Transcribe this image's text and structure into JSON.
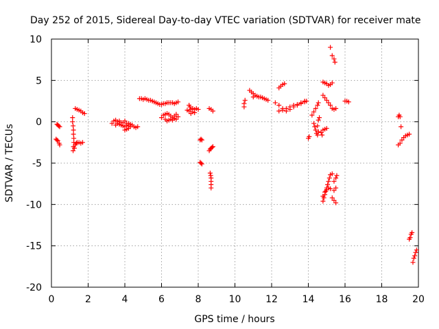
{
  "chart_data": {
    "type": "scatter",
    "title": "Day 252 of 2015, Sidereal Day-to-day VTEC variation (SDTVAR) for receiver mate",
    "xlabel": "GPS time / hours",
    "ylabel": "SDTVAR / TECUs",
    "xlim": [
      0,
      20
    ],
    "ylim": [
      -20,
      10
    ],
    "xticks": [
      "0",
      "2",
      "4",
      "6",
      "8",
      "10",
      "12",
      "14",
      "16",
      "18",
      "20"
    ],
    "yticks": [
      "10",
      "5",
      "0",
      "-5",
      "-10",
      "-15",
      "-20"
    ],
    "grid": true,
    "marker": "+",
    "color": "#ff0000",
    "series": [
      {
        "name": "SDTVAR",
        "points": [
          [
            0.3,
            -0.3
          ],
          [
            0.35,
            -0.4
          ],
          [
            0.4,
            -0.5
          ],
          [
            0.45,
            -0.6
          ],
          [
            0.25,
            -2.1
          ],
          [
            0.3,
            -2.2
          ],
          [
            0.35,
            -2.3
          ],
          [
            0.42,
            -2.6
          ],
          [
            0.45,
            -2.8
          ],
          [
            1.15,
            0.5
          ],
          [
            1.15,
            0.0
          ],
          [
            1.18,
            -0.5
          ],
          [
            1.2,
            -1.0
          ],
          [
            1.2,
            -1.5
          ],
          [
            1.22,
            -2.0
          ],
          [
            1.22,
            -2.5
          ],
          [
            1.2,
            -3.0
          ],
          [
            1.18,
            -3.5
          ],
          [
            1.25,
            -3.2
          ],
          [
            1.3,
            -2.8
          ],
          [
            1.35,
            -2.6
          ],
          [
            1.4,
            -2.5
          ],
          [
            1.5,
            -2.5
          ],
          [
            1.6,
            -2.6
          ],
          [
            1.7,
            -2.5
          ],
          [
            1.3,
            1.6
          ],
          [
            1.4,
            1.5
          ],
          [
            1.5,
            1.4
          ],
          [
            1.6,
            1.3
          ],
          [
            1.7,
            1.1
          ],
          [
            1.8,
            1.0
          ],
          [
            3.3,
            -0.2
          ],
          [
            3.4,
            0.1
          ],
          [
            3.5,
            0.2
          ],
          [
            3.6,
            0.0
          ],
          [
            3.7,
            -0.3
          ],
          [
            3.8,
            -0.4
          ],
          [
            3.9,
            -0.1
          ],
          [
            4.0,
            0.1
          ],
          [
            4.1,
            -0.2
          ],
          [
            4.2,
            -0.5
          ],
          [
            4.3,
            -0.6
          ],
          [
            4.4,
            -0.4
          ],
          [
            4.5,
            -0.6
          ],
          [
            4.6,
            -0.7
          ],
          [
            4.7,
            -0.6
          ],
          [
            3.5,
            -0.4
          ],
          [
            3.6,
            -0.2
          ],
          [
            3.7,
            0.1
          ],
          [
            3.8,
            -0.1
          ],
          [
            3.9,
            -0.5
          ],
          [
            4.0,
            -0.6
          ],
          [
            4.1,
            -0.4
          ],
          [
            4.2,
            -0.2
          ],
          [
            4.3,
            -0.3
          ],
          [
            4.0,
            -1.0
          ],
          [
            4.1,
            -0.9
          ],
          [
            4.2,
            -0.8
          ],
          [
            4.8,
            2.8
          ],
          [
            4.9,
            2.8
          ],
          [
            5.0,
            2.7
          ],
          [
            5.1,
            2.8
          ],
          [
            5.2,
            2.7
          ],
          [
            5.3,
            2.6
          ],
          [
            5.4,
            2.6
          ],
          [
            5.5,
            2.5
          ],
          [
            5.6,
            2.4
          ],
          [
            5.7,
            2.3
          ],
          [
            5.8,
            2.2
          ],
          [
            5.9,
            2.1
          ],
          [
            6.0,
            2.1
          ],
          [
            6.1,
            2.2
          ],
          [
            6.2,
            2.2
          ],
          [
            6.3,
            2.3
          ],
          [
            6.4,
            2.3
          ],
          [
            6.5,
            2.3
          ],
          [
            6.6,
            2.3
          ],
          [
            6.7,
            2.2
          ],
          [
            6.8,
            2.3
          ],
          [
            6.9,
            2.4
          ],
          [
            6.0,
            0.5
          ],
          [
            6.1,
            0.8
          ],
          [
            6.2,
            0.9
          ],
          [
            6.3,
            1.0
          ],
          [
            6.4,
            0.9
          ],
          [
            6.5,
            0.7
          ],
          [
            6.6,
            0.5
          ],
          [
            6.7,
            0.7
          ],
          [
            6.8,
            0.9
          ],
          [
            6.9,
            0.6
          ],
          [
            6.2,
            0.3
          ],
          [
            6.3,
            0.1
          ],
          [
            6.4,
            0.2
          ],
          [
            6.5,
            0.3
          ],
          [
            6.6,
            0.2
          ],
          [
            6.7,
            0.4
          ],
          [
            6.8,
            0.3
          ],
          [
            7.4,
            1.4
          ],
          [
            7.5,
            1.3
          ],
          [
            7.6,
            1.5
          ],
          [
            7.7,
            1.6
          ],
          [
            7.8,
            1.5
          ],
          [
            7.9,
            1.6
          ],
          [
            8.0,
            1.5
          ],
          [
            7.5,
            2.0
          ],
          [
            7.55,
            1.8
          ],
          [
            7.6,
            1.0
          ],
          [
            7.7,
            1.2
          ],
          [
            7.8,
            1.1
          ],
          [
            8.1,
            -2.2
          ],
          [
            8.15,
            -2.1
          ],
          [
            8.2,
            -2.2
          ],
          [
            8.1,
            -4.9
          ],
          [
            8.15,
            -5.0
          ],
          [
            8.2,
            -5.1
          ],
          [
            8.6,
            -3.5
          ],
          [
            8.65,
            -3.3
          ],
          [
            8.7,
            -3.2
          ],
          [
            8.75,
            -3.1
          ],
          [
            8.8,
            -3.0
          ],
          [
            8.65,
            -6.2
          ],
          [
            8.68,
            -6.5
          ],
          [
            8.7,
            -6.8
          ],
          [
            8.7,
            -7.2
          ],
          [
            8.7,
            -7.6
          ],
          [
            8.7,
            -8.0
          ],
          [
            8.6,
            1.6
          ],
          [
            8.7,
            1.5
          ],
          [
            8.8,
            1.3
          ],
          [
            10.5,
            1.8
          ],
          [
            10.5,
            2.2
          ],
          [
            10.55,
            2.6
          ],
          [
            10.8,
            3.8
          ],
          [
            10.9,
            3.6
          ],
          [
            11.0,
            3.4
          ],
          [
            11.0,
            3.0
          ],
          [
            11.1,
            3.2
          ],
          [
            11.2,
            3.1
          ],
          [
            11.3,
            3.0
          ],
          [
            11.4,
            3.0
          ],
          [
            11.5,
            2.9
          ],
          [
            11.6,
            2.8
          ],
          [
            11.7,
            2.7
          ],
          [
            11.8,
            2.6
          ],
          [
            12.4,
            4.1
          ],
          [
            12.5,
            4.3
          ],
          [
            12.6,
            4.5
          ],
          [
            12.7,
            4.6
          ],
          [
            12.2,
            2.3
          ],
          [
            12.4,
            2.0
          ],
          [
            12.6,
            1.6
          ],
          [
            12.8,
            1.3
          ],
          [
            13.0,
            1.5
          ],
          [
            13.2,
            1.8
          ],
          [
            13.4,
            2.0
          ],
          [
            13.6,
            2.2
          ],
          [
            13.8,
            2.4
          ],
          [
            13.9,
            2.5
          ],
          [
            12.4,
            1.3
          ],
          [
            12.6,
            1.4
          ],
          [
            12.8,
            1.6
          ],
          [
            13.0,
            1.8
          ],
          [
            13.2,
            2.0
          ],
          [
            13.4,
            2.1
          ],
          [
            13.6,
            2.3
          ],
          [
            13.8,
            2.5
          ],
          [
            14.0,
            -2.0
          ],
          [
            14.05,
            -1.8
          ],
          [
            14.2,
            0.8
          ],
          [
            14.3,
            1.2
          ],
          [
            14.4,
            1.6
          ],
          [
            14.5,
            2.0
          ],
          [
            14.55,
            2.3
          ],
          [
            14.3,
            -0.2
          ],
          [
            14.35,
            -0.6
          ],
          [
            14.4,
            -1.0
          ],
          [
            14.45,
            -1.4
          ],
          [
            14.5,
            -1.6
          ],
          [
            14.55,
            -1.2
          ],
          [
            14.5,
            -0.5
          ],
          [
            14.55,
            0.2
          ],
          [
            14.6,
            0.5
          ],
          [
            14.8,
            -1.0
          ],
          [
            14.9,
            -0.9
          ],
          [
            15.0,
            -0.8
          ],
          [
            14.7,
            -1.3
          ],
          [
            14.75,
            -1.6
          ],
          [
            14.8,
            4.8
          ],
          [
            14.9,
            4.7
          ],
          [
            15.0,
            4.6
          ],
          [
            15.1,
            4.4
          ],
          [
            15.2,
            4.5
          ],
          [
            15.3,
            4.7
          ],
          [
            14.8,
            3.2
          ],
          [
            14.9,
            2.9
          ],
          [
            15.0,
            2.6
          ],
          [
            15.1,
            2.3
          ],
          [
            15.2,
            2.0
          ],
          [
            15.3,
            1.6
          ],
          [
            15.4,
            1.5
          ],
          [
            15.5,
            1.6
          ],
          [
            15.2,
            9.0
          ],
          [
            15.3,
            8.0
          ],
          [
            15.4,
            7.6
          ],
          [
            15.45,
            7.2
          ],
          [
            14.8,
            -9.6
          ],
          [
            14.85,
            -9.2
          ],
          [
            14.9,
            -8.8
          ],
          [
            14.95,
            -8.4
          ],
          [
            15.0,
            -8.0
          ],
          [
            15.05,
            -7.6
          ],
          [
            15.1,
            -7.2
          ],
          [
            15.15,
            -6.8
          ],
          [
            15.2,
            -6.4
          ],
          [
            15.3,
            -6.3
          ],
          [
            14.8,
            -9.0
          ],
          [
            14.9,
            -8.5
          ],
          [
            15.0,
            -8.2
          ],
          [
            15.1,
            -8.0
          ],
          [
            15.2,
            -8.1
          ],
          [
            15.3,
            -9.2
          ],
          [
            15.4,
            -9.5
          ],
          [
            15.5,
            -9.8
          ],
          [
            15.4,
            -8.3
          ],
          [
            15.5,
            -8.0
          ],
          [
            15.4,
            -7.2
          ],
          [
            15.5,
            -6.8
          ],
          [
            15.55,
            -6.5
          ],
          [
            16.0,
            2.5
          ],
          [
            16.1,
            2.5
          ],
          [
            16.2,
            2.4
          ],
          [
            18.9,
            -2.8
          ],
          [
            19.0,
            -2.6
          ],
          [
            19.1,
            -2.2
          ],
          [
            19.2,
            -1.9
          ],
          [
            19.3,
            -1.7
          ],
          [
            19.4,
            -1.6
          ],
          [
            19.5,
            -1.5
          ],
          [
            18.9,
            0.6
          ],
          [
            18.95,
            0.8
          ],
          [
            19.0,
            0.6
          ],
          [
            19.05,
            -0.6
          ],
          [
            19.5,
            -14.2
          ],
          [
            19.55,
            -14.0
          ],
          [
            19.6,
            -13.6
          ],
          [
            19.65,
            -13.4
          ],
          [
            19.7,
            -17.0
          ],
          [
            19.75,
            -16.5
          ],
          [
            19.8,
            -16.2
          ],
          [
            19.85,
            -15.8
          ],
          [
            19.9,
            -15.5
          ]
        ]
      }
    ]
  }
}
